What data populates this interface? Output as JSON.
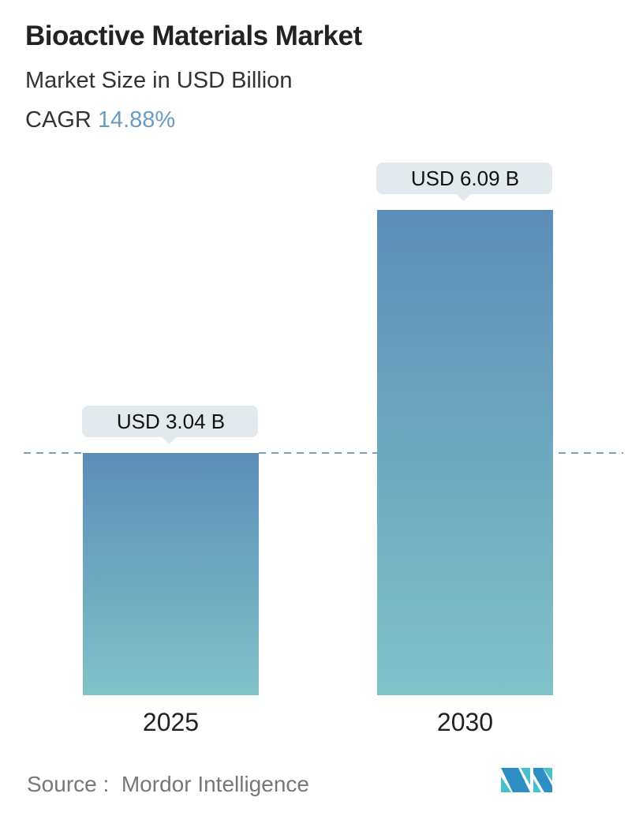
{
  "title": "Bioactive Materials Market",
  "subtitle": "Market Size in USD Billion",
  "cagr": {
    "label": "CAGR",
    "value": "14.88%"
  },
  "source": {
    "label": "Source :",
    "value": "Mordor Intelligence"
  },
  "colors": {
    "bar_top": "#5b8db8",
    "bar_bottom": "#80c2c8",
    "label_bg": "#e2eaee",
    "cagr": "#6a9cc0",
    "dash": "#5a7f9f"
  },
  "chart_data": {
    "type": "bar",
    "categories": [
      "2025",
      "2030"
    ],
    "values": [
      3.04,
      6.09
    ],
    "data_labels": [
      "USD 3.04 B",
      "USD 6.09 B"
    ],
    "ylabel": "",
    "xlabel": "",
    "grid": false,
    "reference_line": 3.04
  }
}
